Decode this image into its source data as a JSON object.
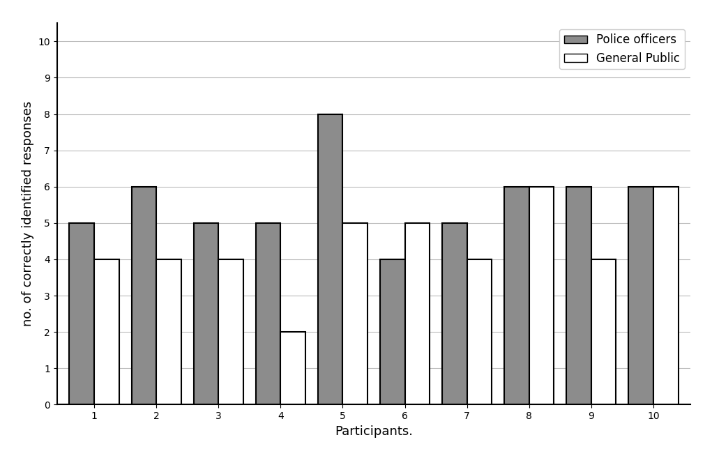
{
  "chart_data": {
    "type": "bar",
    "x_label": "Participants.",
    "y_label": "no. of correctly identified responses",
    "categories": [
      "1",
      "2",
      "3",
      "4",
      "5",
      "6",
      "7",
      "8",
      "9",
      "10"
    ],
    "series": [
      {
        "name": "Police officers",
        "color": "#8c8c8c",
        "values": [
          5,
          6,
          5,
          5,
          8,
          4,
          5,
          6,
          6,
          6
        ]
      },
      {
        "name": "General Public",
        "color": "#ffffff",
        "values": [
          4,
          4,
          4,
          2,
          5,
          5,
          4,
          6,
          4,
          6
        ]
      }
    ],
    "ylim": [
      0,
      10.5
    ],
    "yticks": [
      0,
      1,
      2,
      3,
      4,
      5,
      6,
      7,
      8,
      9,
      10
    ],
    "grid": true,
    "legend": "upper right"
  }
}
